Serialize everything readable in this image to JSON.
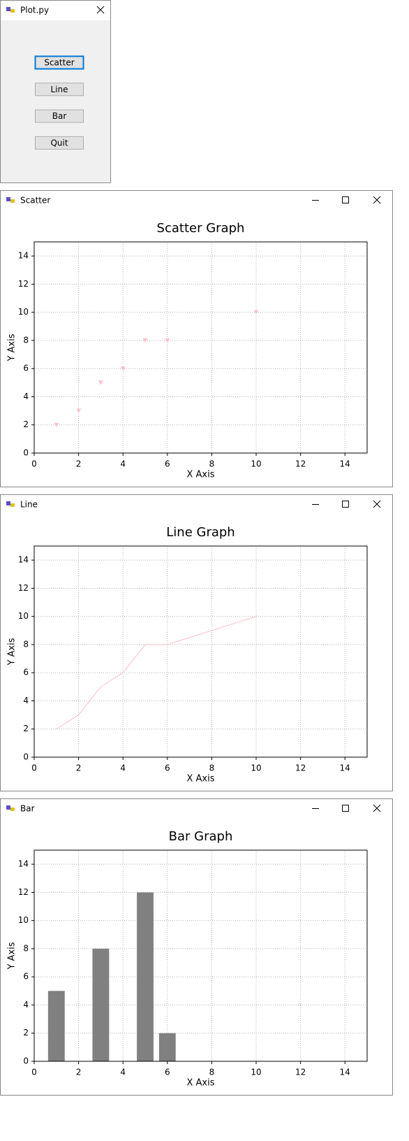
{
  "main_window": {
    "title": "Plot.py",
    "buttons": [
      "Scatter",
      "Line",
      "Bar",
      "Quit"
    ]
  },
  "windows": [
    {
      "title": "Scatter"
    },
    {
      "title": "Line"
    },
    {
      "title": "Bar"
    }
  ],
  "chart_data": [
    {
      "type": "scatter",
      "title": "Scatter Graph",
      "xlabel": "X Axis",
      "ylabel": "Y Axis",
      "x": [
        1,
        2,
        3,
        4,
        5,
        6,
        10
      ],
      "values": [
        2,
        3,
        5,
        6,
        8,
        8,
        10
      ],
      "color": "#ffc0cb",
      "marker": "triangle-down",
      "xlim": [
        0,
        15
      ],
      "ylim": [
        0,
        15
      ],
      "xticks": [
        0,
        2,
        4,
        6,
        8,
        10,
        12,
        14
      ],
      "yticks": [
        0,
        2,
        4,
        6,
        8,
        10,
        12,
        14
      ],
      "grid": true
    },
    {
      "type": "line",
      "title": "Line Graph",
      "xlabel": "X Axis",
      "ylabel": "Y Axis",
      "x": [
        1,
        2,
        3,
        4,
        5,
        6,
        10
      ],
      "values": [
        2,
        3,
        5,
        6,
        8,
        8,
        10
      ],
      "color": "#ffc0cb",
      "xlim": [
        0,
        15
      ],
      "ylim": [
        0,
        15
      ],
      "xticks": [
        0,
        2,
        4,
        6,
        8,
        10,
        12,
        14
      ],
      "yticks": [
        0,
        2,
        4,
        6,
        8,
        10,
        12,
        14
      ],
      "grid": true
    },
    {
      "type": "bar",
      "title": "Bar Graph",
      "xlabel": "X Axis",
      "ylabel": "Y Axis",
      "x": [
        1,
        3,
        5,
        6
      ],
      "values": [
        5,
        8,
        12,
        2
      ],
      "color": "#808080",
      "bar_width": 0.75,
      "xlim": [
        0,
        15
      ],
      "ylim": [
        0,
        15
      ],
      "xticks": [
        0,
        2,
        4,
        6,
        8,
        10,
        12,
        14
      ],
      "yticks": [
        0,
        2,
        4,
        6,
        8,
        10,
        12,
        14
      ],
      "grid": true
    }
  ]
}
